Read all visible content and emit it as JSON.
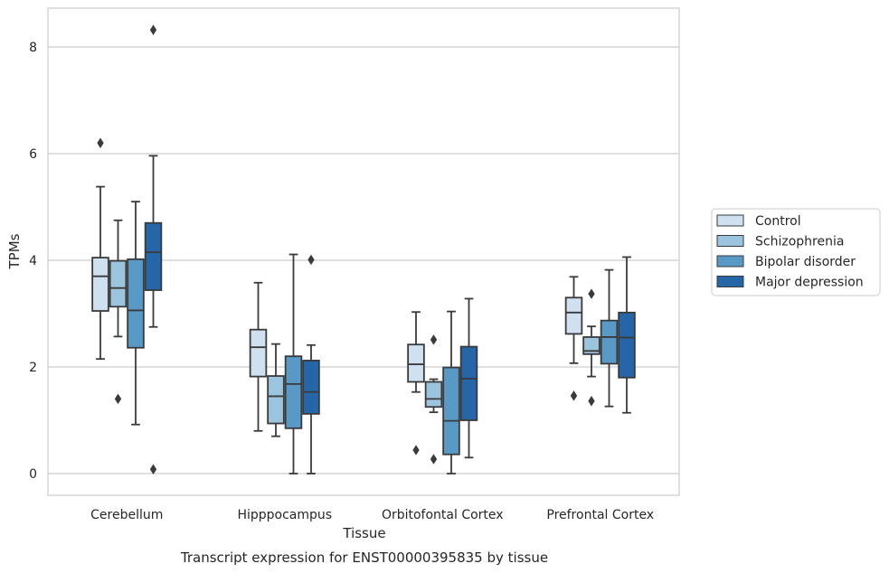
{
  "caption": "Transcript expression for ENST00000395835 by tissue",
  "chart_data": {
    "type": "boxplot",
    "xlabel": "Tissue",
    "ylabel": "TPMs",
    "ylim": [
      -0.4,
      8.7
    ],
    "yticks": [
      0,
      2,
      4,
      6,
      8
    ],
    "grid": "horizontal",
    "legend_position": "right",
    "categories": [
      "Cerebellum",
      "Hipppocampus",
      "Orbitofontal Cortex",
      "Prefrontal Cortex"
    ],
    "series": [
      {
        "name": "Control",
        "color": "#cfe0f0",
        "boxes": [
          {
            "whisker_low": 2.15,
            "q1": 3.05,
            "median": 3.7,
            "q3": 4.05,
            "whisker_high": 5.38,
            "outliers": [
              6.2
            ]
          },
          {
            "whisker_low": 0.8,
            "q1": 1.82,
            "median": 2.37,
            "q3": 2.7,
            "whisker_high": 3.58,
            "outliers": []
          },
          {
            "whisker_low": 1.53,
            "q1": 1.72,
            "median": 2.05,
            "q3": 2.42,
            "whisker_high": 3.03,
            "outliers": [
              0.44
            ]
          },
          {
            "whisker_low": 2.07,
            "q1": 2.62,
            "median": 3.02,
            "q3": 3.3,
            "whisker_high": 3.69,
            "outliers": [
              1.46
            ]
          }
        ]
      },
      {
        "name": "Schizophrenia",
        "color": "#9bc4de",
        "boxes": [
          {
            "whisker_low": 2.57,
            "q1": 3.13,
            "median": 3.48,
            "q3": 3.99,
            "whisker_high": 4.75,
            "outliers": [
              1.4
            ]
          },
          {
            "whisker_low": 0.7,
            "q1": 0.94,
            "median": 1.45,
            "q3": 1.83,
            "whisker_high": 2.43,
            "outliers": []
          },
          {
            "whisker_low": 1.15,
            "q1": 1.25,
            "median": 1.4,
            "q3": 1.72,
            "whisker_high": 1.77,
            "outliers": [
              2.51,
              0.27
            ]
          },
          {
            "whisker_low": 1.82,
            "q1": 2.24,
            "median": 2.3,
            "q3": 2.56,
            "whisker_high": 2.76,
            "outliers": [
              3.37,
              1.36
            ]
          }
        ]
      },
      {
        "name": "Bipolar disorder",
        "color": "#5899c6",
        "boxes": [
          {
            "whisker_low": 0.92,
            "q1": 2.36,
            "median": 3.06,
            "q3": 4.02,
            "whisker_high": 5.1,
            "outliers": []
          },
          {
            "whisker_low": 0.0,
            "q1": 0.85,
            "median": 1.68,
            "q3": 2.2,
            "whisker_high": 4.11,
            "outliers": []
          },
          {
            "whisker_low": 0.0,
            "q1": 0.36,
            "median": 0.99,
            "q3": 1.99,
            "whisker_high": 3.04,
            "outliers": []
          },
          {
            "whisker_low": 1.26,
            "q1": 2.06,
            "median": 2.56,
            "q3": 2.87,
            "whisker_high": 3.82,
            "outliers": []
          }
        ]
      },
      {
        "name": "Major depression",
        "color": "#2466a8",
        "boxes": [
          {
            "whisker_low": 2.75,
            "q1": 3.44,
            "median": 4.15,
            "q3": 4.7,
            "whisker_high": 5.96,
            "outliers": [
              8.32,
              0.08
            ]
          },
          {
            "whisker_low": 0.0,
            "q1": 1.12,
            "median": 1.53,
            "q3": 2.12,
            "whisker_high": 2.41,
            "outliers": [
              4.01
            ]
          },
          {
            "whisker_low": 0.3,
            "q1": 1.0,
            "median": 1.78,
            "q3": 2.38,
            "whisker_high": 3.28,
            "outliers": []
          },
          {
            "whisker_low": 1.14,
            "q1": 1.8,
            "median": 2.55,
            "q3": 3.02,
            "whisker_high": 4.06,
            "outliers": []
          }
        ]
      }
    ]
  }
}
